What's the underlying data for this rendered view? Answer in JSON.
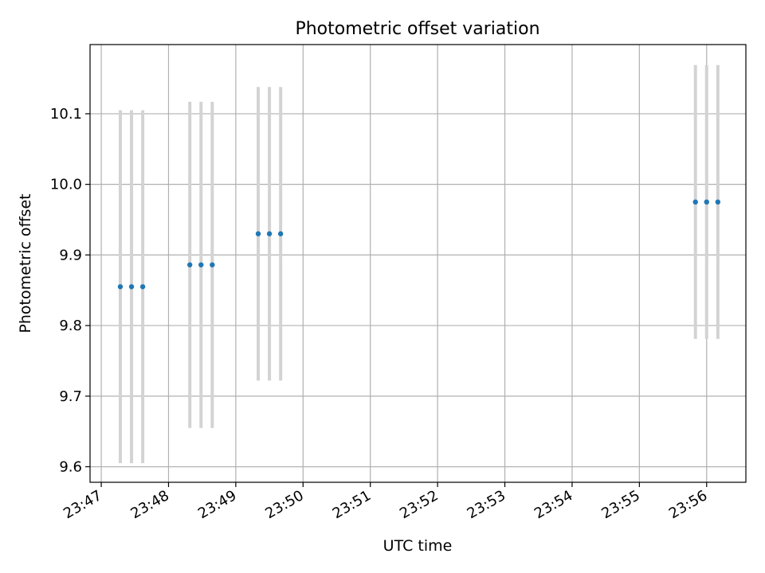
{
  "chart_data": {
    "type": "scatter",
    "title": "Photometric offset variation",
    "xlabel": "UTC time",
    "ylabel": "Photometric offset",
    "x_unit": "minutes",
    "xlim": [
      "23:46:50",
      "23:56:35"
    ],
    "ylim": [
      9.578,
      10.198
    ],
    "grid": true,
    "legend": "none",
    "x_ticks": [
      "23:47",
      "23:48",
      "23:49",
      "23:50",
      "23:51",
      "23:52",
      "23:53",
      "23:54",
      "23:55",
      "23:56"
    ],
    "y_ticks": [
      9.6,
      9.7,
      9.8,
      9.9,
      10.0,
      10.1
    ],
    "y_tick_labels": [
      "9.6",
      "9.7",
      "9.8",
      "9.9",
      "10.0",
      "10.1"
    ],
    "points": [
      {
        "x": "23:47:17",
        "y": 9.855,
        "yerr": 0.25
      },
      {
        "x": "23:47:27",
        "y": 9.855,
        "yerr": 0.25
      },
      {
        "x": "23:47:37",
        "y": 9.855,
        "yerr": 0.25
      },
      {
        "x": "23:48:19",
        "y": 9.886,
        "yerr": 0.231
      },
      {
        "x": "23:48:29",
        "y": 9.886,
        "yerr": 0.231
      },
      {
        "x": "23:48:39",
        "y": 9.886,
        "yerr": 0.231
      },
      {
        "x": "23:49:20",
        "y": 9.93,
        "yerr": 0.208
      },
      {
        "x": "23:49:30",
        "y": 9.93,
        "yerr": 0.208
      },
      {
        "x": "23:49:40",
        "y": 9.93,
        "yerr": 0.208
      },
      {
        "x": "23:55:50",
        "y": 9.975,
        "yerr": 0.194
      },
      {
        "x": "23:56:00",
        "y": 9.975,
        "yerr": 0.194
      },
      {
        "x": "23:56:10",
        "y": 9.975,
        "yerr": 0.194
      }
    ],
    "colors": {
      "point": "#1f77b4",
      "errorbar": "#d3d3d3",
      "grid": "#b0b0b0",
      "axes": "#000000"
    }
  }
}
